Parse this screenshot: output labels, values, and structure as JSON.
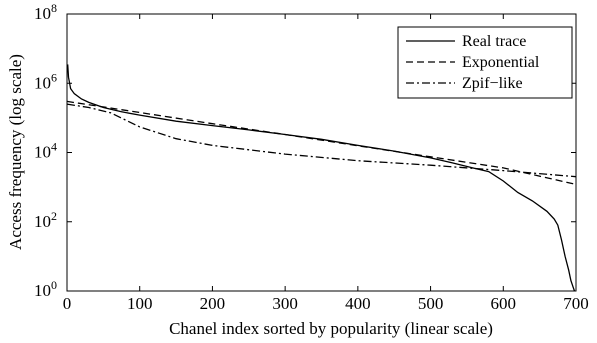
{
  "chart_data": {
    "type": "line",
    "title": "",
    "xlabel": "Chanel index sorted by popularity (linear scale)",
    "ylabel": "Access frequency (log scale)",
    "xscale": "linear",
    "yscale": "log",
    "xlim": [
      0,
      700
    ],
    "ylim": [
      1,
      100000000
    ],
    "xticks": [
      {
        "value": 0,
        "label": "0"
      },
      {
        "value": 100,
        "label": "100"
      },
      {
        "value": 200,
        "label": "200"
      },
      {
        "value": 300,
        "label": "300"
      },
      {
        "value": 400,
        "label": "400"
      },
      {
        "value": 500,
        "label": "500"
      },
      {
        "value": 600,
        "label": "600"
      },
      {
        "value": 700,
        "label": "700"
      }
    ],
    "yticks": [
      {
        "value": 1,
        "base": "10",
        "exp": "0"
      },
      {
        "value": 100,
        "base": "10",
        "exp": "2"
      },
      {
        "value": 10000,
        "base": "10",
        "exp": "4"
      },
      {
        "value": 1000000,
        "base": "10",
        "exp": "6"
      },
      {
        "value": 100000000,
        "base": "10",
        "exp": "8"
      }
    ],
    "grid": false,
    "legend_position": "top-right",
    "series": [
      {
        "name": "Real trace",
        "style": "solid",
        "x": [
          1,
          2,
          5,
          10,
          20,
          30,
          50,
          75,
          100,
          150,
          200,
          250,
          300,
          350,
          400,
          450,
          500,
          530,
          560,
          580,
          600,
          620,
          640,
          660,
          670,
          675,
          680,
          685,
          690,
          693,
          696,
          698
        ],
        "y": [
          3500000,
          1500000,
          700000,
          500000,
          350000,
          280000,
          200000,
          150000,
          120000,
          80000,
          60000,
          45000,
          33000,
          24000,
          16000,
          11000,
          7000,
          5000,
          3500,
          2800,
          1500,
          700,
          400,
          200,
          120,
          80,
          30,
          10,
          4,
          2,
          1.3,
          1
        ]
      },
      {
        "name": "Exponential",
        "style": "dashed",
        "x": [
          0,
          100,
          200,
          300,
          400,
          500,
          600,
          700
        ],
        "y": [
          300000,
          143000,
          68000,
          33000,
          15600,
          7500,
          3600,
          1200
        ]
      },
      {
        "name": "Zpif−like",
        "style": "dashdot",
        "x": [
          0,
          30,
          60,
          100,
          150,
          200,
          300,
          400,
          500,
          600,
          700
        ],
        "y": [
          250000,
          200000,
          140000,
          55000,
          25000,
          16000,
          9000,
          5800,
          4300,
          3000,
          2000
        ]
      }
    ]
  }
}
